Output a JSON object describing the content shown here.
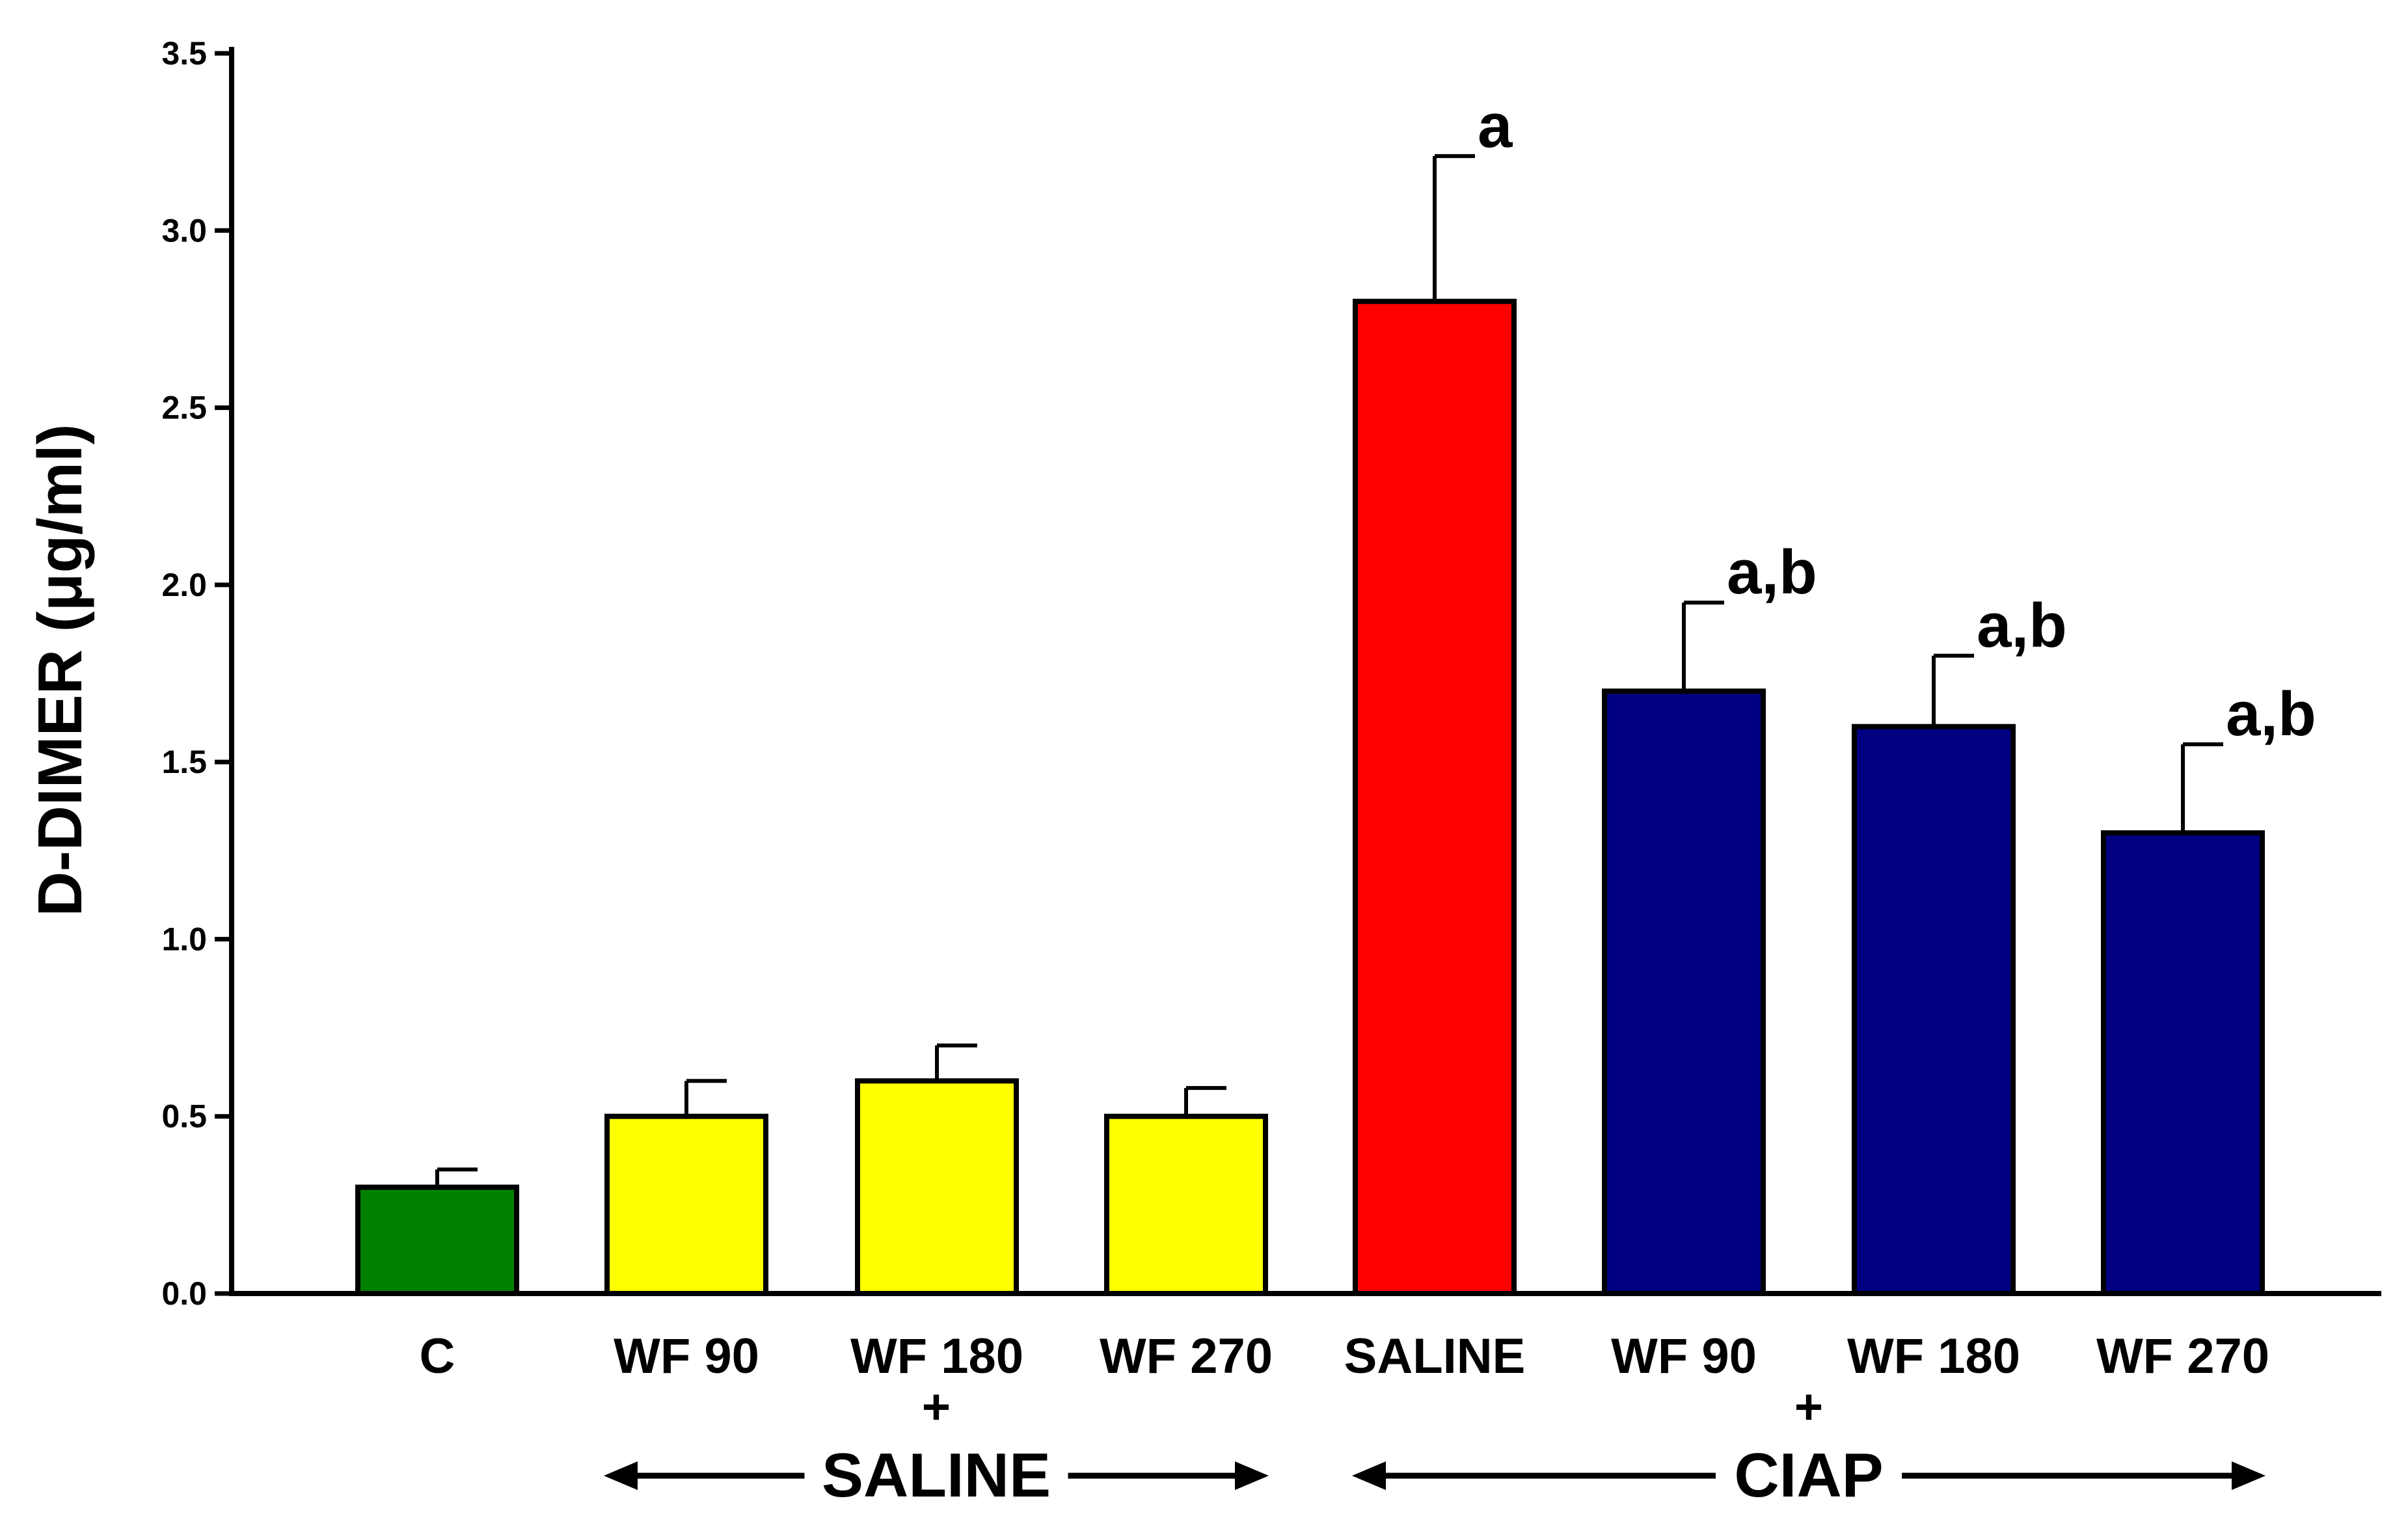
{
  "chart_data": {
    "type": "bar",
    "ylabel": "D-DIMER (μg/ml)",
    "ylim": [
      0,
      3.5
    ],
    "yticks": [
      "0.0",
      "0.5",
      "1.0",
      "1.5",
      "2.0",
      "2.5",
      "3.0",
      "3.5"
    ],
    "categories": [
      "C",
      "WF 90",
      "WF 180",
      "WF 270",
      "SALINE",
      "WF 90",
      "WF 180",
      "WF 270"
    ],
    "values": [
      0.3,
      0.5,
      0.6,
      0.5,
      2.8,
      1.7,
      1.6,
      1.3
    ],
    "errors": [
      0.05,
      0.1,
      0.1,
      0.08,
      0.41,
      0.25,
      0.2,
      0.25
    ],
    "annotations": [
      "",
      "",
      "",
      "",
      "a",
      "a,b",
      "a,b",
      "a,b"
    ],
    "colors": [
      "#008000",
      "#ffff00",
      "#ffff00",
      "#ffff00",
      "#ff0000",
      "#000080",
      "#000080",
      "#000080"
    ],
    "groups": [
      {
        "label": "SALINE",
        "plus": "+",
        "range": [
          1,
          3
        ]
      },
      {
        "label": "CIAP",
        "plus": "+",
        "range": [
          4,
          7
        ]
      }
    ]
  }
}
